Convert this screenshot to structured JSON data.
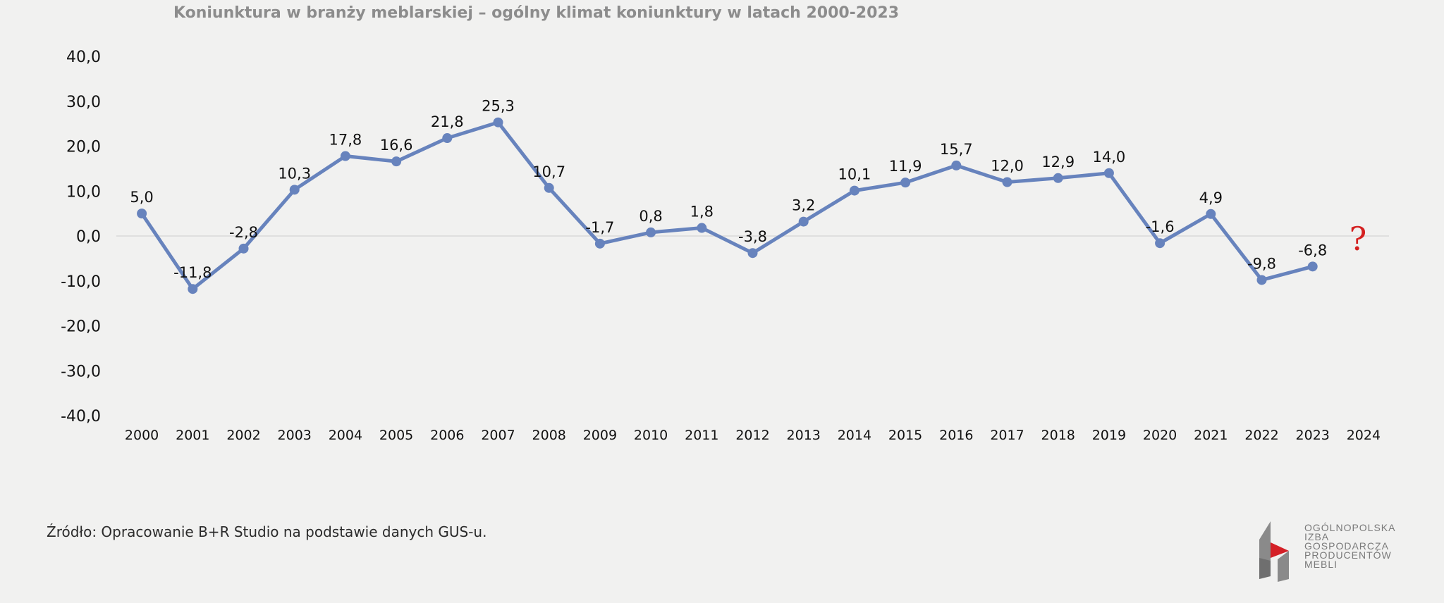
{
  "chart_data": {
    "type": "line",
    "title": "Koniunktura w branży meblarskiej – ogólny klimat koniunktury w latach 2000-2023",
    "xlabel": "",
    "ylabel": "",
    "categories": [
      "2000",
      "2001",
      "2002",
      "2003",
      "2004",
      "2005",
      "2006",
      "2007",
      "2008",
      "2009",
      "2010",
      "2011",
      "2012",
      "2013",
      "2014",
      "2015",
      "2016",
      "2017",
      "2018",
      "2019",
      "2020",
      "2021",
      "2022",
      "2023",
      "2024"
    ],
    "series": [
      {
        "values": [
          5.0,
          -11.8,
          -2.8,
          10.3,
          17.8,
          16.6,
          21.8,
          25.3,
          10.7,
          -1.7,
          0.8,
          1.8,
          -3.8,
          3.2,
          10.1,
          11.9,
          15.7,
          12.0,
          12.9,
          14.0,
          -1.6,
          4.9,
          -9.8,
          -6.8,
          null
        ],
        "data_labels": [
          "5,0",
          "-11,8",
          "-2,8",
          "10,3",
          "17,8",
          "16,6",
          "21,8",
          "25,3",
          "10,7",
          "-1,7",
          "0,8",
          "1,8",
          "-3,8",
          "3,2",
          "10,1",
          "11,9",
          "15,7",
          "12,0",
          "12,9",
          "14,0",
          "-1,6",
          "4,9",
          "-9,8",
          "-6,8",
          null
        ],
        "color": "#6783bd"
      }
    ],
    "y_ticks": [
      "40,0",
      "30,0",
      "20,0",
      "10,0",
      "0,0",
      "-10,0",
      "-20,0",
      "-30,0",
      "-40,0"
    ],
    "ylim": [
      -40,
      40
    ],
    "grid": false,
    "zero_line": true,
    "annotation": {
      "text": "?",
      "category": "2024",
      "color": "#d42020"
    }
  },
  "source": "Źródło: Opracowanie B+R Studio na podstawie danych GUS-u.",
  "logo": {
    "lines": [
      "OGÓLNOPOLSKA",
      "IZBA",
      "GOSPODARCZA",
      "PRODUCENTÓW",
      "MEBLI"
    ],
    "colors": {
      "gray": "#8a8a8a",
      "red": "#d42027"
    }
  }
}
